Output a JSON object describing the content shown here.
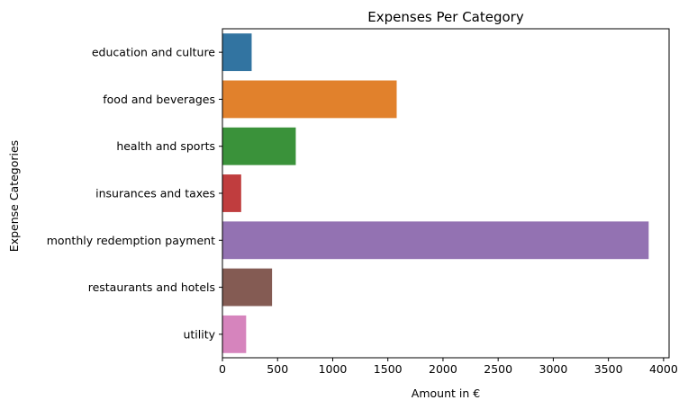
{
  "chart_data": {
    "type": "bar",
    "orientation": "horizontal",
    "title": "Expenses Per Category",
    "xlabel": "Amount in €",
    "ylabel": "Expense Categories",
    "xlim": [
      0,
      4050
    ],
    "xticks": [
      0,
      500,
      1000,
      1500,
      2000,
      2500,
      3000,
      3500,
      4000
    ],
    "grid": false,
    "categories": [
      "education and culture",
      "food and beverages",
      "health and sports",
      "insurances and taxes",
      "monthly redemption payment",
      "restaurants and hotels",
      "utility"
    ],
    "values": [
      265,
      1580,
      665,
      170,
      3865,
      450,
      215
    ],
    "colors": [
      "#3274a1",
      "#e1812c",
      "#3a923a",
      "#c03d3e",
      "#9372b2",
      "#845b53",
      "#d684bd"
    ]
  }
}
